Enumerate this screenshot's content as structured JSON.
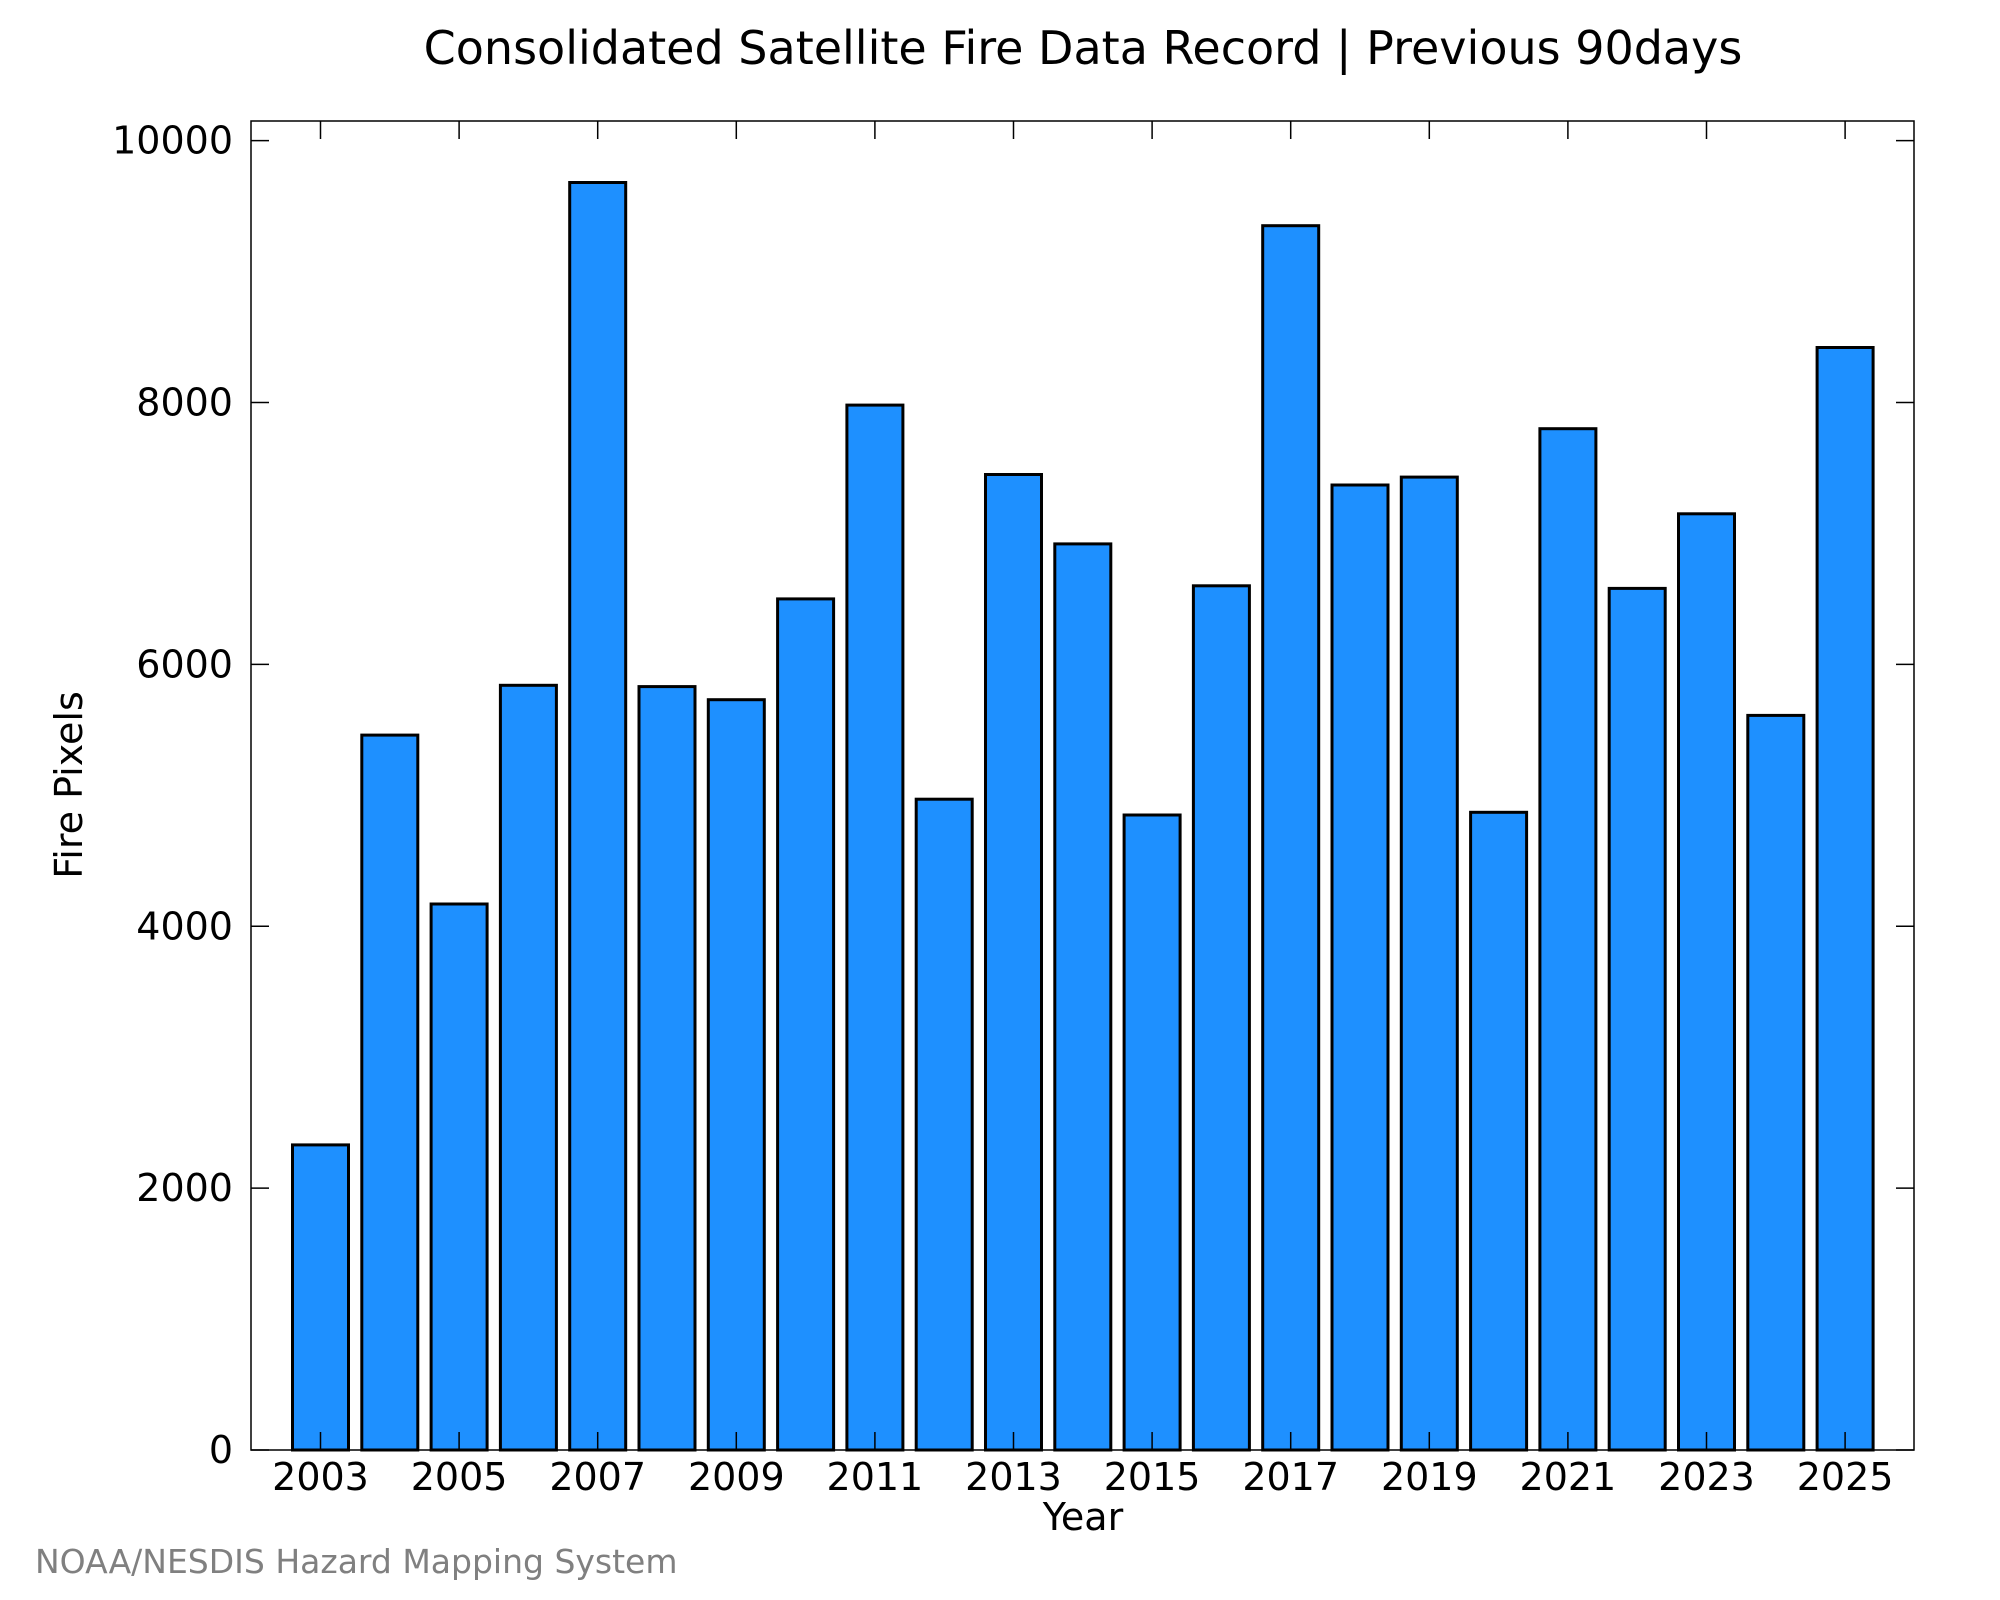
{
  "chart_data": {
    "type": "bar",
    "title": "Consolidated Satellite Fire Data Record | Previous 90days",
    "xlabel": "Year",
    "ylabel": "Fire Pixels",
    "categories": [
      "2003",
      "2004",
      "2005",
      "2006",
      "2007",
      "2008",
      "2009",
      "2010",
      "2011",
      "2012",
      "2013",
      "2014",
      "2015",
      "2016",
      "2017",
      "2018",
      "2019",
      "2020",
      "2021",
      "2022",
      "2023",
      "2024",
      "2025"
    ],
    "values": [
      2330,
      5460,
      4170,
      5840,
      9680,
      5830,
      5730,
      6500,
      7980,
      4970,
      7450,
      6920,
      4850,
      6600,
      9350,
      7370,
      7430,
      4870,
      7800,
      6580,
      7150,
      5610,
      8420
    ],
    "ylim": [
      0,
      10150
    ],
    "yticks": [
      0,
      2000,
      4000,
      6000,
      8000,
      10000
    ],
    "xtick_labels": [
      "2003",
      "2005",
      "2007",
      "2009",
      "2011",
      "2013",
      "2015",
      "2017",
      "2019",
      "2021",
      "2023",
      "2025"
    ],
    "grid": false,
    "bar_color": "#1e90ff",
    "edge_color": "#000000"
  },
  "footer": {
    "credit": "NOAA/NESDIS Hazard Mapping System"
  }
}
